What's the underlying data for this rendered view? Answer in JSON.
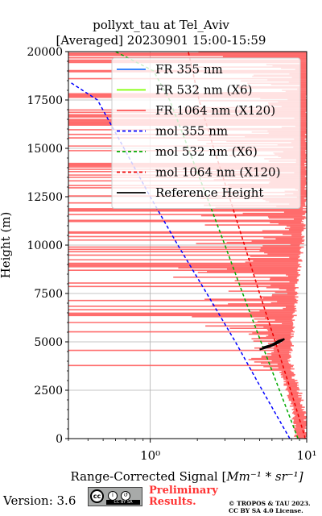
{
  "title_line1": "pollyxt_tau at Tel_Aviv",
  "title_line2": "[Averaged] 20230901 15:00-15:59",
  "footer": {
    "version": "Version: 3.6",
    "license_badge": "CC BY SA",
    "preliminary": [
      "Preliminary",
      "Results."
    ],
    "copyright": [
      "© TROPOS & TAU 2023.",
      "CC BY SA 4.0 License."
    ]
  },
  "chart_data": {
    "type": "line",
    "xlabel": "Range-Corrected Signal [",
    "xlabel_math": "Mm",
    "xlabel_units": "⁻¹ * sr⁻¹]",
    "ylabel": "Height (m)",
    "xscale": "log",
    "xlim": [
      0.3,
      10.0
    ],
    "ylim": [
      0,
      20000
    ],
    "xticks": [
      1,
      10
    ],
    "xtick_labels": [
      "10⁰",
      "10¹"
    ],
    "yticks": [
      0,
      2500,
      5000,
      7500,
      10000,
      12500,
      15000,
      17500,
      20000
    ],
    "ytick_labels": [
      "0",
      "2500",
      "5000",
      "7500",
      "10000",
      "12500",
      "15000",
      "17500",
      "20000"
    ],
    "grid": true,
    "legend_position": "top-right",
    "colors": {
      "fr355": "#1f77ff",
      "fr532": "#80ff00",
      "fr1064": "#ff5555",
      "mol355": "#0000ff",
      "mol532": "#00aa00",
      "mol1064": "#ee0000",
      "ref": "#000000"
    },
    "legend": [
      {
        "label": "FR 355 nm",
        "color": "#1f77ff",
        "style": "solid"
      },
      {
        "label": "FR 532 nm (X6)",
        "color": "#80ff00",
        "style": "solid"
      },
      {
        "label": "FR 1064 nm (X120)",
        "color": "#ff5555",
        "style": "solid"
      },
      {
        "label": "mol 355 nm",
        "color": "#0000ff",
        "style": "dashed"
      },
      {
        "label": "mol 532 nm (X6)",
        "color": "#00aa00",
        "style": "dashed"
      },
      {
        "label": "mol 1064 nm (X120)",
        "color": "#ee0000",
        "style": "dashed"
      },
      {
        "label": "Reference Height",
        "color": "#000000",
        "style": "solid"
      }
    ],
    "series": [
      {
        "name": "mol 355 nm",
        "style": "dashed",
        "color": "#0000ff",
        "x": [
          7.8,
          5.2,
          3.5,
          2.3,
          1.5,
          1.0,
          0.68,
          0.46,
          0.31
        ],
        "y": [
          0,
          2500,
          5000,
          7500,
          10000,
          12500,
          15000,
          17500,
          18400
        ]
      },
      {
        "name": "mol 532 nm (X6)",
        "style": "dashed",
        "color": "#00aa00",
        "x": [
          8.8,
          6.7,
          5.1,
          3.9,
          3.0,
          2.3,
          1.75,
          1.33,
          1.05,
          0.6
        ],
        "y": [
          0,
          2500,
          5000,
          7500,
          10000,
          12500,
          15000,
          17500,
          19000,
          20000
        ]
      },
      {
        "name": "mol 1064 nm (X120)",
        "style": "dashed",
        "color": "#ee0000",
        "x": [
          9.8,
          7.9,
          6.3,
          5.0,
          4.0,
          3.2,
          2.55,
          2.05,
          1.75
        ],
        "y": [
          0,
          2500,
          5000,
          7500,
          10000,
          12500,
          15000,
          17500,
          20000
        ]
      },
      {
        "name": "Reference Height",
        "style": "solid",
        "color": "#000000",
        "x": [
          5.0,
          5.8,
          6.4,
          6.9,
          7.2,
          6.6,
          6.0,
          5.2
        ],
        "y": [
          4600,
          4750,
          4900,
          5050,
          5150,
          5050,
          4850,
          4700
        ]
      },
      {
        "name": "FR 1064 nm (X120)",
        "style": "band",
        "color": "#ff5555",
        "profile_x": [
          9.5,
          9.2,
          8.5,
          7.8,
          7.5,
          7.3,
          7.6,
          7.8,
          8.0,
          8.4,
          8.8,
          9.2,
          9.5,
          9.8
        ],
        "profile_y": [
          0,
          1200,
          2400,
          3200,
          3800,
          4200,
          5000,
          6000,
          7000,
          8500,
          10000,
          12000,
          15000,
          20000
        ],
        "noise_band_start": 3500
      }
    ]
  }
}
